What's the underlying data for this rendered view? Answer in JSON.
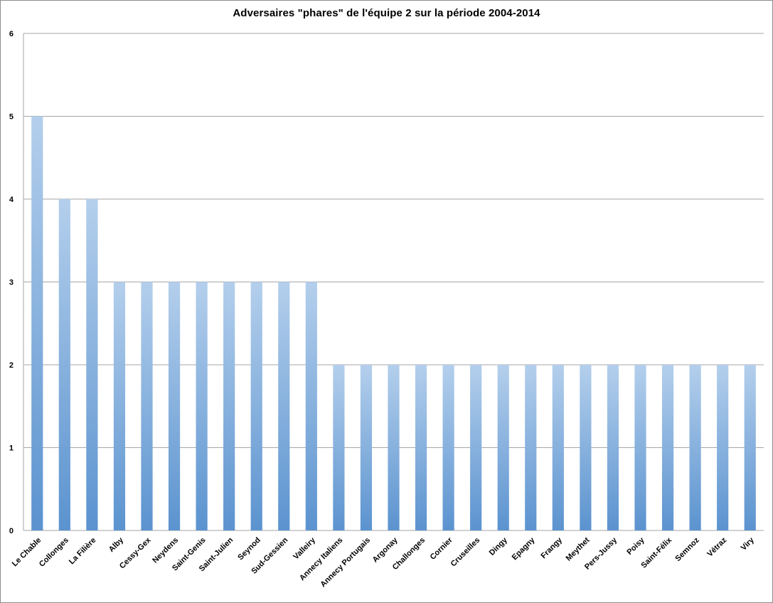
{
  "chart_data": {
    "type": "bar",
    "title": "Adversaires \"phares\" de l'équipe 2 sur la période 2004-2014",
    "xlabel": "",
    "ylabel": "",
    "ylim": [
      0,
      6
    ],
    "yticks": [
      "0",
      "1",
      "2",
      "3",
      "4",
      "5",
      "6"
    ],
    "grid": true,
    "legend": "none",
    "colors": {
      "bar_top": "#b4cfec",
      "bar_bottom": "#5b93cf",
      "grid": "#a6a6a6"
    },
    "categories": [
      "Le Chable",
      "Collonges",
      "La Filière",
      "Alby",
      "Cessy-Gex",
      "Neydens",
      "Saint-Genis",
      "Saint-Julien",
      "Seynod",
      "Sud-Gessien",
      "Valleiry",
      "Annecy Italiens",
      "Annecy Portugais",
      "Argonay",
      "Challonges",
      "Cornier",
      "Cruseilles",
      "Dingy",
      "Epagny",
      "Frangy",
      "Meythet",
      "Pers-Jussy",
      "Poisy",
      "Saint-Félix",
      "Semnoz",
      "Vétraz",
      "Viry"
    ],
    "values": [
      5,
      4,
      4,
      3,
      3,
      3,
      3,
      3,
      3,
      3,
      3,
      2,
      2,
      2,
      2,
      2,
      2,
      2,
      2,
      2,
      2,
      2,
      2,
      2,
      2,
      2,
      2
    ]
  }
}
